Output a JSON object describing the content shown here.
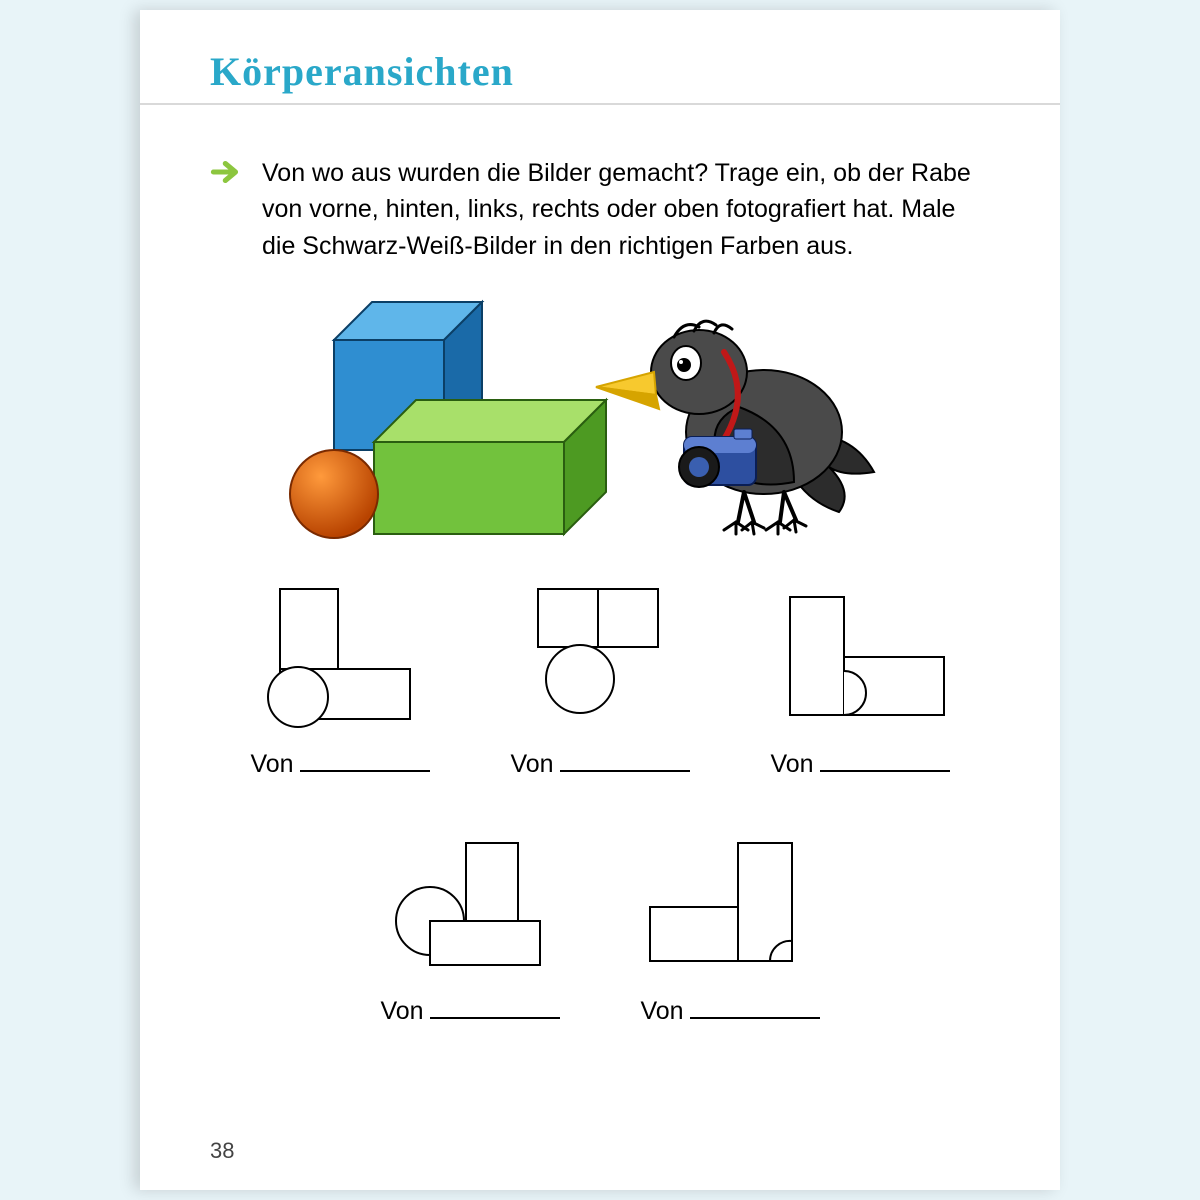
{
  "header": {
    "title": "Körperansichten"
  },
  "instruction": "Von wo aus wurden die Bilder gemacht? Trage ein, ob der Rabe von vorne, hinten, links, rechts oder oben fotografiert hat. Male die Schwarz-Weiß-Bilder in den richtigen Farben aus.",
  "scene": {
    "cube_blue": {
      "fill_light": "#5fb6ea",
      "fill_mid": "#2f8ed1",
      "fill_dark": "#1a6aa8",
      "stroke": "#0b3f66"
    },
    "cube_green": {
      "fill_light": "#a8e06a",
      "fill_mid": "#72c23d",
      "fill_dark": "#4d9a22",
      "stroke": "#2a5e10"
    },
    "sphere": {
      "fill_light": "#ff9a3c",
      "fill_mid": "#ef6a16",
      "fill_dark": "#b84300",
      "stroke": "#7a2a00"
    },
    "raven": {
      "body": "#4a4a4a",
      "body_dark": "#2c2c2c",
      "beak": "#f7c92e",
      "beak_dark": "#d6a400",
      "eye_white": "#ffffff",
      "eye_black": "#000000",
      "strap": "#c01818",
      "camera": "#2d4fa0",
      "camera_light": "#5d7fd1",
      "lens": "#1a1a1a"
    }
  },
  "answers": [
    {
      "label": "Von",
      "svg": "a"
    },
    {
      "label": "Von",
      "svg": "b"
    },
    {
      "label": "Von",
      "svg": "c"
    },
    {
      "label": "Von",
      "svg": "d"
    },
    {
      "label": "Von",
      "svg": "e"
    }
  ],
  "page_number": "38",
  "style": {
    "title_color": "#2aa8c9",
    "outline": {
      "stroke": "#000000",
      "stroke_width": 2,
      "fill": "#ffffff"
    }
  }
}
